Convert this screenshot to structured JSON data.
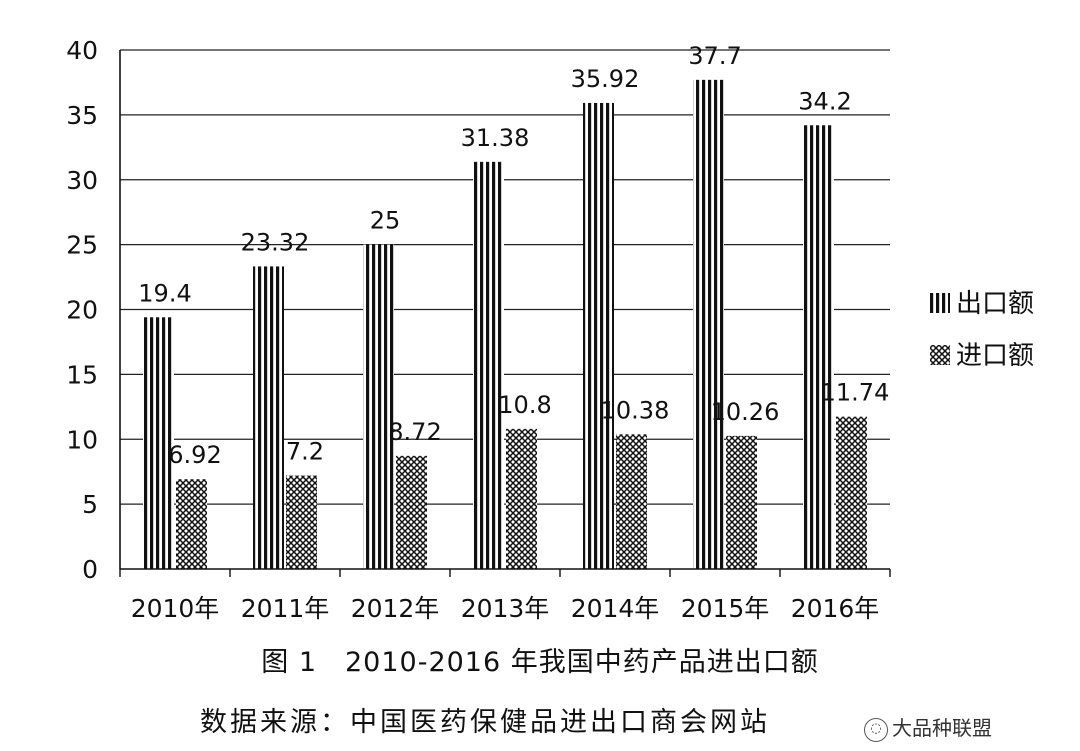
{
  "chart_data": {
    "type": "bar",
    "categories": [
      "2010年",
      "2011年",
      "2012年",
      "2013年",
      "2014年",
      "2015年",
      "2016年"
    ],
    "series": [
      {
        "name": "出口额",
        "pattern": "vertical-stripes",
        "values": [
          19.4,
          23.32,
          25,
          31.38,
          35.92,
          37.7,
          34.2
        ],
        "labels": [
          "19.4",
          "23.32",
          "25",
          "31.38",
          "35.92",
          "37.7",
          "34.2"
        ]
      },
      {
        "name": "进口额",
        "pattern": "crosshatch",
        "values": [
          6.92,
          7.2,
          8.72,
          10.8,
          10.38,
          10.26,
          11.74
        ],
        "labels": [
          "6.92",
          "7.2",
          "8.72",
          "10.8",
          "10.38",
          "10.26",
          "11.74"
        ]
      }
    ],
    "ylim": [
      0,
      40
    ],
    "yticks": [
      "0",
      "5",
      "10",
      "15",
      "20",
      "25",
      "30",
      "35",
      "40"
    ],
    "grid": true,
    "legend_position": "right"
  },
  "figure_caption": "图 1　2010-2016 年我国中药产品进出口额",
  "source_caption": "数据来源：中国医药保健品进出口商会网站",
  "watermark": {
    "icon": "wechat-icon",
    "text": "大品种联盟"
  },
  "colors": {
    "bars": "#111111",
    "grid": "#222222",
    "background": "#ffffff"
  }
}
